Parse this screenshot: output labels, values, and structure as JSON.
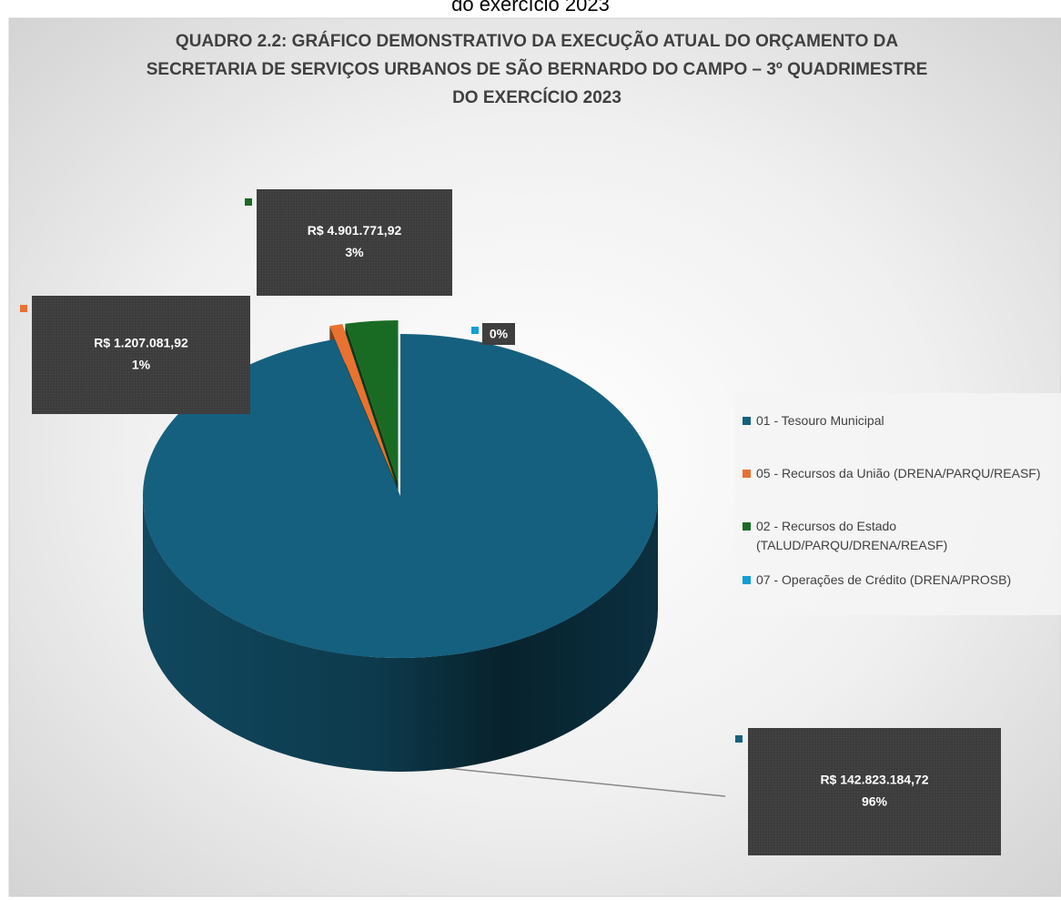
{
  "caption": "do exercício 2023",
  "chart_data": {
    "type": "pie3d",
    "title": [
      "QUADRO 2.2: GRÁFICO DEMONSTRATIVO DA EXECUÇÃO ATUAL DO ORÇAMENTO DA",
      "SECRETARIA DE SERVIÇOS URBANOS DE SÃO BERNARDO DO CAMPO – 3º QUADRIMESTRE",
      "DO EXERCÍCIO 2023"
    ],
    "categories": [
      "01 - Tesouro Municipal",
      "05 - Recursos da União (DRENA/PARQU/REASF)",
      "02 - Recursos do Estado (TALUD/PARQU/DRENA/REASF)",
      "07 - Operações de Crédito (DRENA/PROSB)"
    ],
    "values": [
      142823184.72,
      1207081.92,
      4901771.92,
      0
    ],
    "value_labels": [
      "R$ 142.823.184,72",
      "R$ 1.207.081,92",
      "R$ 4.901.771,92",
      null
    ],
    "percent_labels": [
      "96%",
      "1%",
      "3%",
      "0%"
    ],
    "colors": [
      "#15607f",
      "#e97132",
      "#196b24",
      "#0f9ed5"
    ],
    "legend": "right"
  }
}
